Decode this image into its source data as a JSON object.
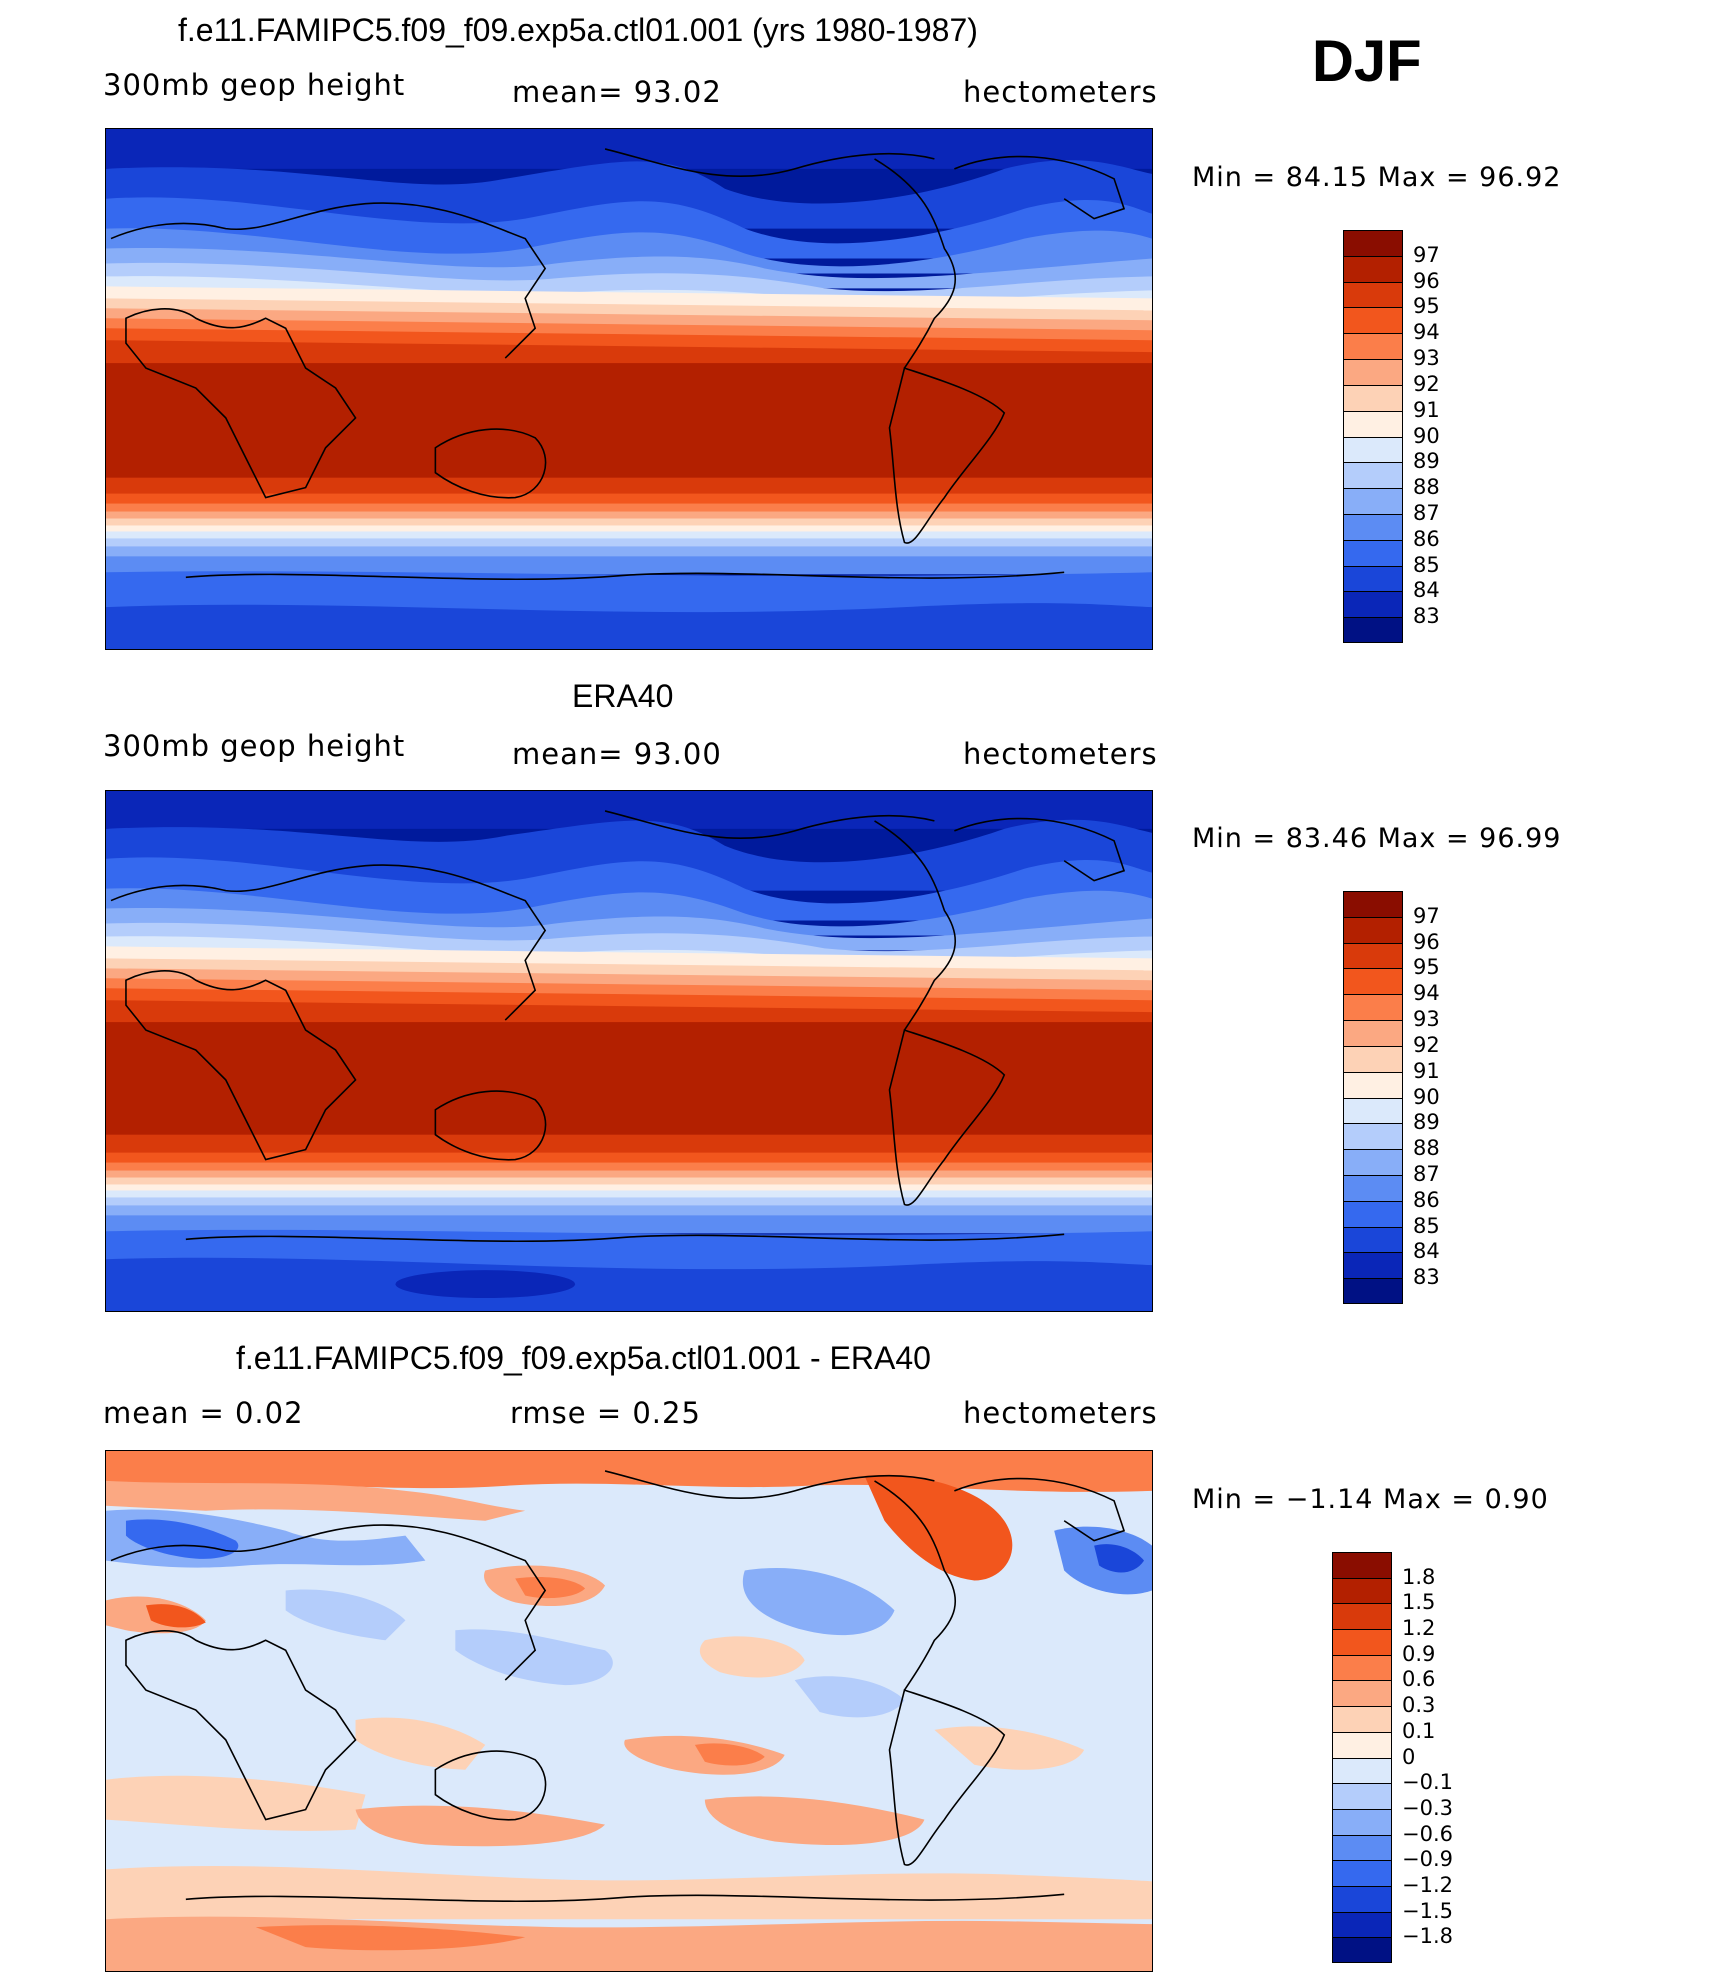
{
  "season": "DJF",
  "panels": [
    {
      "title": "f.e11.FAMIPC5.f09_f09.exp5a.ctl01.001 (yrs 1980-1987)",
      "left_label": "300mb  geop  height",
      "mid_label": "mean=   93.02",
      "right_label": "hectometers",
      "minmax": "Min  =    84.15  Max  =    96.92",
      "colorbar": {
        "labels": [
          "97",
          "96",
          "95",
          "94",
          "93",
          "92",
          "91",
          "90",
          "89",
          "88",
          "87",
          "86",
          "85",
          "84",
          "83"
        ],
        "colors": [
          "#8a0d00",
          "#b32000",
          "#d93a0b",
          "#f2561d",
          "#fb7e4a",
          "#fba882",
          "#fdd2b6",
          "#fff0e3",
          "#dbe9fb",
          "#b4cdfb",
          "#88aef8",
          "#5c8cf3",
          "#3569ef",
          "#1a46d9",
          "#0a26b8",
          "#001184"
        ]
      }
    },
    {
      "title": "ERA40",
      "left_label": "300mb  geop  height",
      "mid_label": "mean=   93.00",
      "right_label": "hectometers",
      "minmax": "Min  =    83.46  Max  =    96.99",
      "colorbar": {
        "labels": [
          "97",
          "96",
          "95",
          "94",
          "93",
          "92",
          "91",
          "90",
          "89",
          "88",
          "87",
          "86",
          "85",
          "84",
          "83"
        ],
        "colors": [
          "#8a0d00",
          "#b32000",
          "#d93a0b",
          "#f2561d",
          "#fb7e4a",
          "#fba882",
          "#fdd2b6",
          "#fff0e3",
          "#dbe9fb",
          "#b4cdfb",
          "#88aef8",
          "#5c8cf3",
          "#3569ef",
          "#1a46d9",
          "#0a26b8",
          "#001184"
        ]
      }
    },
    {
      "title": "f.e11.FAMIPC5.f09_f09.exp5a.ctl01.001 - ERA40",
      "left_label": "mean  =     0.02",
      "mid_label": "rmse  =     0.25",
      "right_label": "hectometers",
      "minmax": "Min  =   −1.14  Max  =     0.90",
      "colorbar": {
        "labels": [
          "1.8",
          "1.5",
          "1.2",
          "0.9",
          "0.6",
          "0.3",
          "0.1",
          "0",
          "−0.1",
          "−0.3",
          "−0.6",
          "−0.9",
          "−1.2",
          "−1.5",
          "−1.8"
        ],
        "colors": [
          "#8a0d00",
          "#b32000",
          "#d93a0b",
          "#f2561d",
          "#fb7e4a",
          "#fba882",
          "#fdd2b6",
          "#fff0e3",
          "#dbe9fb",
          "#b4cdfb",
          "#88aef8",
          "#5c8cf3",
          "#3569ef",
          "#1a46d9",
          "#0a26b8",
          "#001184"
        ]
      }
    }
  ]
}
